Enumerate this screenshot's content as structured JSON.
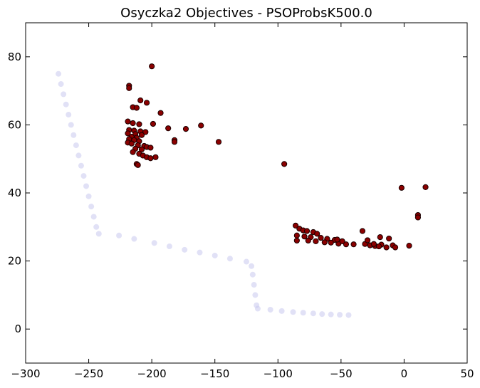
{
  "chart_data": {
    "type": "scatter",
    "title": "Osyczka2 Objectives - PSOProbsK500.0",
    "xlabel": "",
    "ylabel": "",
    "xlim": [
      -300,
      50
    ],
    "ylim": [
      -10,
      90
    ],
    "xticks": [
      -300,
      -250,
      -200,
      -150,
      -100,
      -50,
      0,
      50
    ],
    "yticks": [
      0,
      20,
      40,
      60,
      80
    ],
    "grid": false,
    "legend": "none",
    "colors": {
      "solutions_fill": "#8b0000",
      "solutions_edge": "#1a0000",
      "front": "#c8c8ee"
    },
    "series": [
      {
        "role": "reference-front",
        "points": [
          [
            -274,
            75
          ],
          [
            -272,
            72
          ],
          [
            -270,
            69
          ],
          [
            -268,
            66
          ],
          [
            -266,
            63
          ],
          [
            -264,
            60
          ],
          [
            -262,
            57
          ],
          [
            -260,
            54
          ],
          [
            -258,
            51
          ],
          [
            -256,
            48
          ],
          [
            -254,
            45
          ],
          [
            -252,
            42
          ],
          [
            -250,
            39
          ],
          [
            -248,
            36
          ],
          [
            -246,
            33
          ],
          [
            -244,
            30
          ],
          [
            -242,
            28
          ],
          [
            -226,
            27.5
          ],
          [
            -214,
            26.5
          ],
          [
            -198,
            25.3
          ],
          [
            -186,
            24.3
          ],
          [
            -174,
            23.3
          ],
          [
            -162,
            22.5
          ],
          [
            -150,
            21.6
          ],
          [
            -138,
            20.7
          ],
          [
            -125,
            19.8
          ],
          [
            -121,
            18.5
          ],
          [
            -120,
            16
          ],
          [
            -119,
            13
          ],
          [
            -118,
            10
          ],
          [
            -117,
            7
          ],
          [
            -116,
            6
          ],
          [
            -106,
            5.7
          ],
          [
            -97,
            5.3
          ],
          [
            -88,
            5.0
          ],
          [
            -80,
            4.8
          ],
          [
            -72,
            4.6
          ],
          [
            -65,
            4.4
          ],
          [
            -58,
            4.3
          ],
          [
            -51,
            4.2
          ],
          [
            -44,
            4.1
          ]
        ]
      },
      {
        "role": "solutions",
        "points": [
          [
            -200,
            77.2
          ],
          [
            -218,
            71.5
          ],
          [
            -218,
            70.8
          ],
          [
            -209,
            67.2
          ],
          [
            -204,
            66.5
          ],
          [
            -215,
            65.2
          ],
          [
            -212,
            65.0
          ],
          [
            -193,
            63.5
          ],
          [
            -219,
            61.0
          ],
          [
            -215,
            60.5
          ],
          [
            -210,
            60.2
          ],
          [
            -199,
            60.3
          ],
          [
            -161,
            59.8
          ],
          [
            -187,
            59.0
          ],
          [
            -173,
            58.8
          ],
          [
            -218,
            58.5
          ],
          [
            -214,
            58.3
          ],
          [
            -209,
            58.1
          ],
          [
            -205,
            57.9
          ],
          [
            -219,
            57.5
          ],
          [
            -213,
            57.3
          ],
          [
            -208,
            57.0
          ],
          [
            -216,
            56.5
          ],
          [
            -212,
            56.2
          ],
          [
            -218,
            55.8
          ],
          [
            -214,
            55.5
          ],
          [
            -210,
            55.2
          ],
          [
            -182,
            55.5
          ],
          [
            -182,
            55.0
          ],
          [
            -147,
            55.0
          ],
          [
            -219,
            54.8
          ],
          [
            -216,
            54.5
          ],
          [
            -211,
            54.0
          ],
          [
            -206,
            53.8
          ],
          [
            -204,
            53.5
          ],
          [
            -201,
            53.3
          ],
          [
            -213,
            53.0
          ],
          [
            -208,
            52.8
          ],
          [
            -215,
            52.0
          ],
          [
            -210,
            51.5
          ],
          [
            -207,
            51.0
          ],
          [
            -204,
            50.5
          ],
          [
            -201,
            50.2
          ],
          [
            -197,
            50.5
          ],
          [
            -212,
            48.5
          ],
          [
            -211,
            48.2
          ],
          [
            -95,
            48.5
          ],
          [
            -2,
            41.5
          ],
          [
            17,
            41.7
          ],
          [
            11,
            33.5
          ],
          [
            11,
            32.8
          ],
          [
            -86,
            30.4
          ],
          [
            -83,
            29.5
          ],
          [
            -80,
            29.0
          ],
          [
            -77,
            28.8
          ],
          [
            -72,
            28.5
          ],
          [
            -69,
            28.0
          ],
          [
            -33,
            28.8
          ],
          [
            -85,
            27.5
          ],
          [
            -79,
            27.2
          ],
          [
            -74,
            27.0
          ],
          [
            -66,
            26.8
          ],
          [
            -61,
            26.5
          ],
          [
            -55,
            26.2
          ],
          [
            -85,
            26.0
          ],
          [
            -76,
            26.0
          ],
          [
            -70,
            25.8
          ],
          [
            -63,
            25.5
          ],
          [
            -58,
            25.4
          ],
          [
            -52,
            25.1
          ],
          [
            -46,
            24.9
          ],
          [
            -40,
            24.9
          ],
          [
            -53,
            26.3
          ],
          [
            -49,
            25.8
          ],
          [
            -31,
            25.0
          ],
          [
            -27,
            24.6
          ],
          [
            -23,
            24.4
          ],
          [
            -18,
            24.8
          ],
          [
            -14,
            24.0
          ],
          [
            -9,
            24.6
          ],
          [
            -7,
            24.0
          ],
          [
            -19,
            27.0
          ],
          [
            -12,
            26.6
          ],
          [
            4,
            24.5
          ],
          [
            -29,
            26.1
          ],
          [
            -24,
            25.0
          ],
          [
            -20,
            24.3
          ]
        ]
      }
    ]
  }
}
